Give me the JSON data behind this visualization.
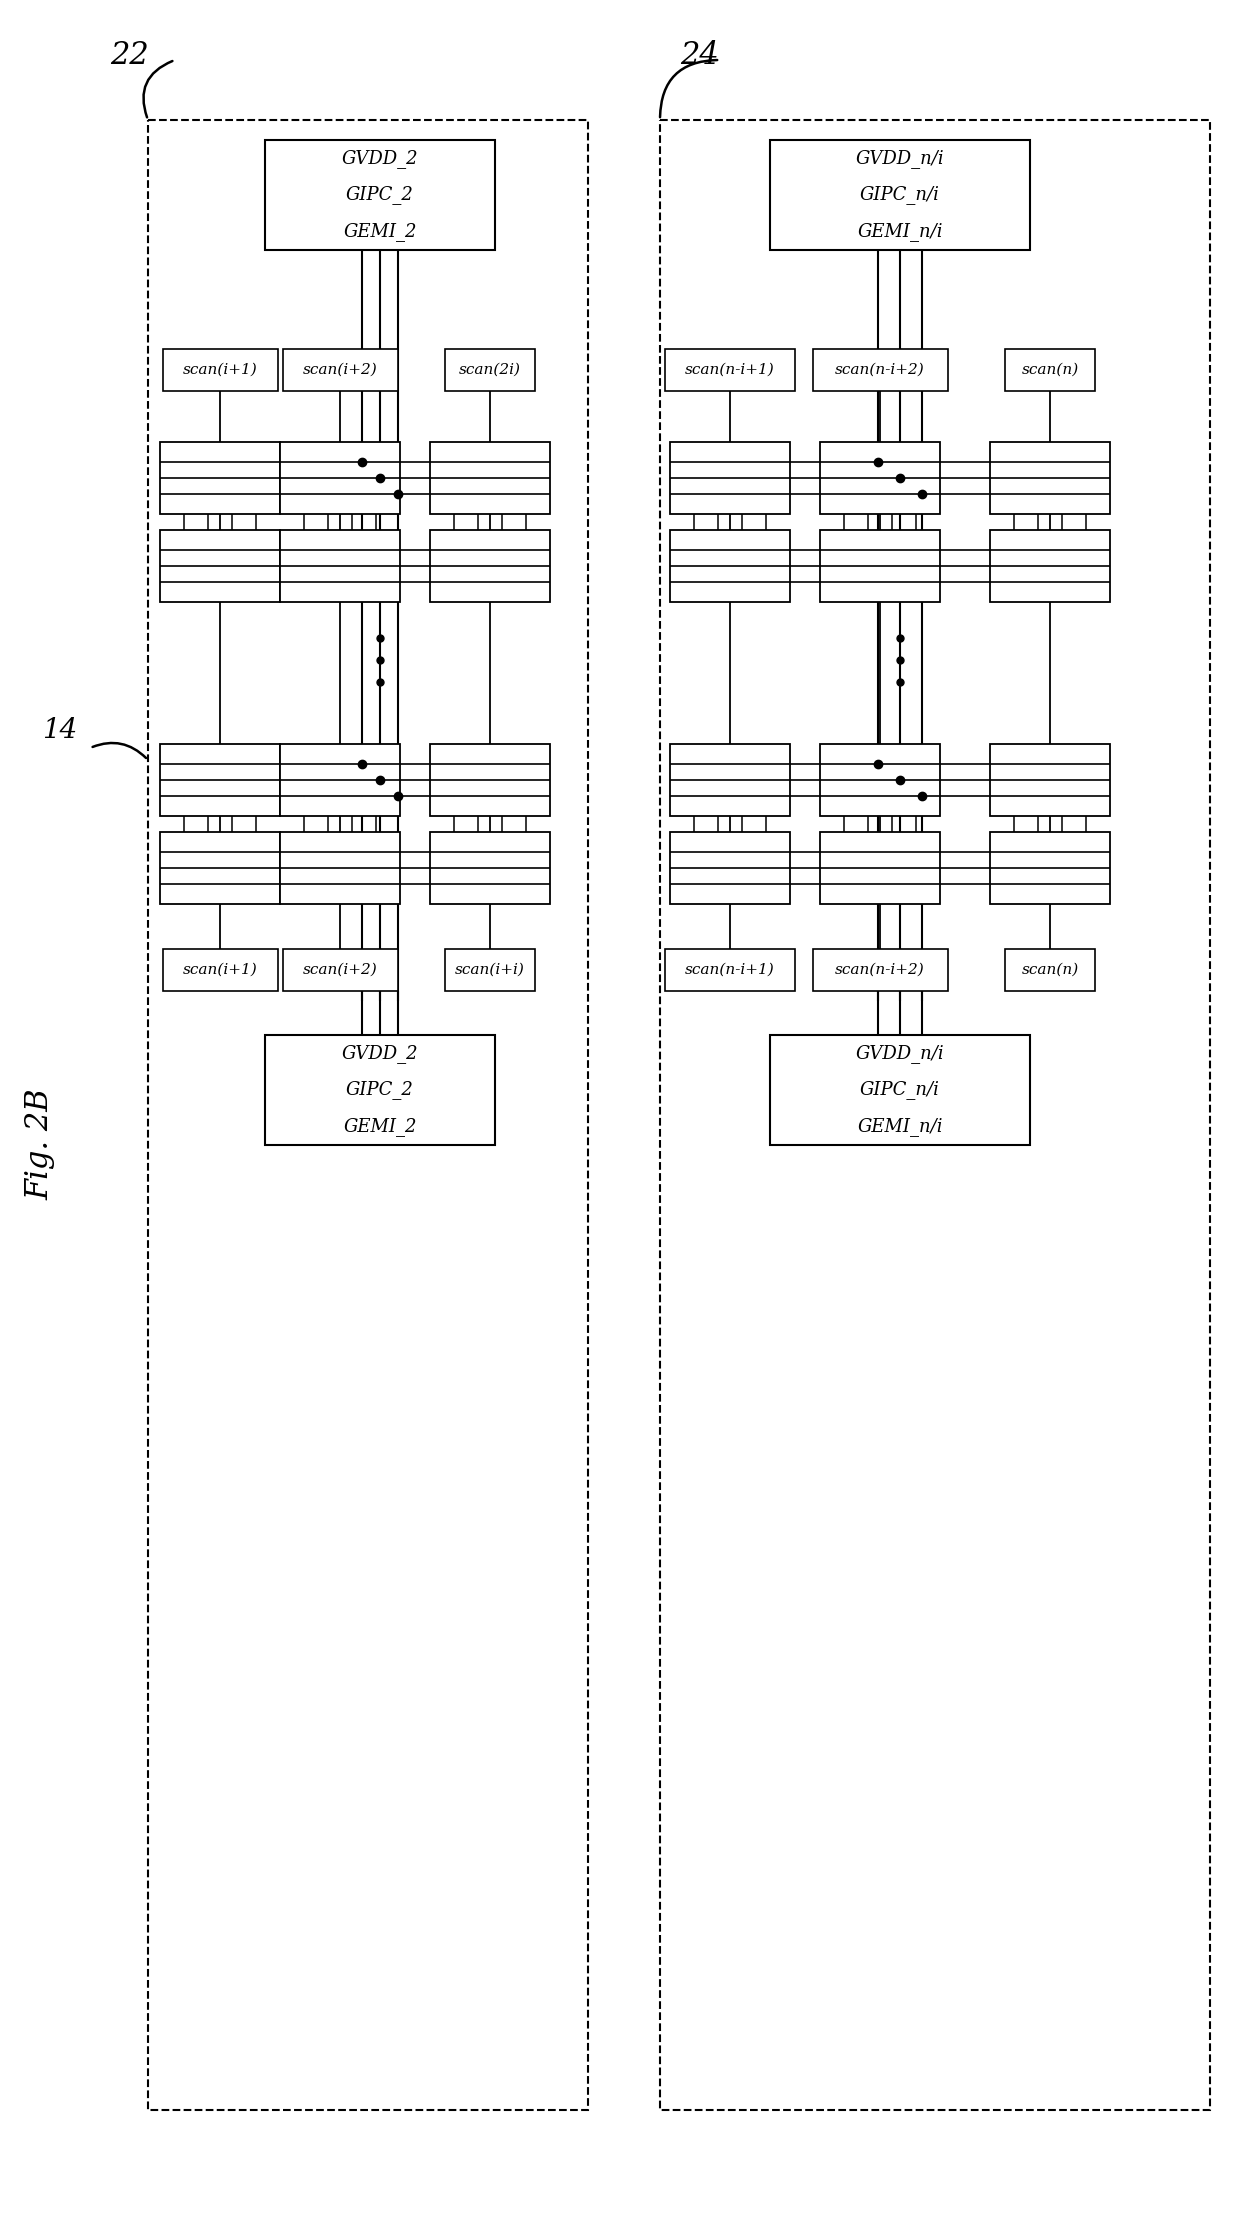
{
  "fig_label": "Fig. 2B",
  "label_22": "22",
  "label_24": "24",
  "label_14": "14",
  "background": "#ffffff",
  "p1_sig_top": [
    "GVDD_2",
    "GIPC_2",
    "GEMI_2"
  ],
  "p1_sig_bot": [
    "GVDD_2",
    "GIPC_2",
    "GEMI_2"
  ],
  "p1_scan_top": [
    "scan(i+1)",
    "scan(i+2)",
    "scan(2i)"
  ],
  "p1_scan_bot": [
    "scan(i+1)",
    "scan(i+2)",
    "scan(i+i)"
  ],
  "p2_sig_top": [
    "GVDD_n/i",
    "GIPC_n/i",
    "GEMI_n/i"
  ],
  "p2_sig_bot": [
    "GVDD_n/i",
    "GIPC_n/i",
    "GEMI_n/i"
  ],
  "p2_scan_top": [
    "scan(n-i+1)",
    "scan(n-i+2)",
    "scan(n)"
  ],
  "p2_scan_bot": [
    "scan(n-i+1)",
    "scan(n-i+2)",
    "scan(n)"
  ]
}
